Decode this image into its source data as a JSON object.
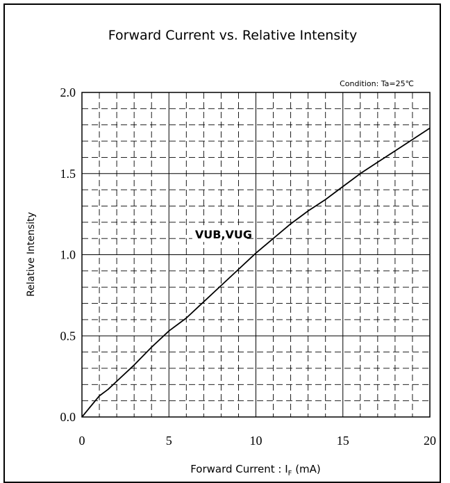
{
  "chart_data": {
    "type": "line",
    "title": "Forward Current vs. Relative Intensity",
    "condition": "Condition: Ta=25℃",
    "xlabel_main": "Forward Current : I",
    "xlabel_sub": "F",
    "xlabel_unit": " (mA)",
    "ylabel": "Relative Intensity",
    "xlim": [
      0,
      20
    ],
    "ylim": [
      0,
      2.0
    ],
    "xticks": [
      "0",
      "5",
      "10",
      "15",
      "20"
    ],
    "yticks": [
      "0.0",
      "0.5",
      "1.0",
      "1.5",
      "2.0"
    ],
    "grid": true,
    "series": [
      {
        "name": "VUB,VUG",
        "x": [
          0,
          1,
          1.5,
          2,
          3,
          4,
          5,
          6,
          7,
          8,
          9,
          10,
          11,
          12,
          13,
          14,
          15,
          16,
          17,
          18,
          19,
          20
        ],
        "y": [
          0,
          0.13,
          0.17,
          0.22,
          0.32,
          0.43,
          0.53,
          0.61,
          0.71,
          0.81,
          0.91,
          1.01,
          1.1,
          1.19,
          1.27,
          1.34,
          1.42,
          1.5,
          1.57,
          1.64,
          1.71,
          1.78
        ],
        "color": "#000000",
        "label_at": [
          6.5,
          1.1
        ]
      }
    ]
  }
}
